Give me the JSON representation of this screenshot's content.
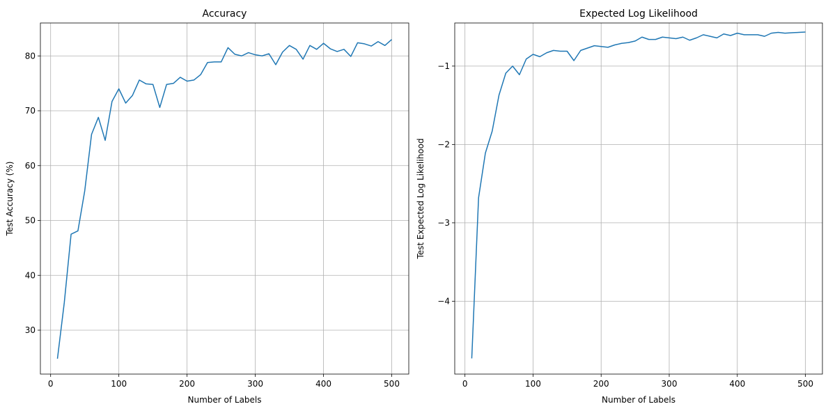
{
  "chart_data": [
    {
      "type": "line",
      "title": "Accuracy",
      "xlabel": "Number of Labels",
      "ylabel": "Test Accuracy (%)",
      "xlim": [
        -15,
        525
      ],
      "ylim": [
        22,
        86
      ],
      "xticks": [
        0,
        100,
        200,
        300,
        400,
        500
      ],
      "yticks": [
        30,
        40,
        50,
        60,
        70,
        80
      ],
      "ytick_labels": [
        "30",
        "40",
        "50",
        "60",
        "70",
        "80"
      ],
      "grid": true,
      "line_color": "#1f77b4",
      "x": [
        10,
        20,
        30,
        40,
        50,
        60,
        70,
        80,
        90,
        100,
        110,
        120,
        130,
        140,
        150,
        160,
        170,
        180,
        190,
        200,
        210,
        220,
        230,
        240,
        250,
        260,
        270,
        280,
        290,
        300,
        310,
        320,
        330,
        340,
        350,
        360,
        370,
        380,
        390,
        400,
        410,
        420,
        430,
        440,
        450,
        460,
        470,
        480,
        490,
        500
      ],
      "series": [
        {
          "values": [
            24.8,
            35.0,
            47.5,
            48.1,
            55.4,
            65.7,
            68.8,
            64.6,
            71.7,
            74.0,
            71.4,
            72.8,
            75.6,
            74.9,
            74.8,
            70.6,
            74.8,
            75.0,
            76.1,
            75.4,
            75.6,
            76.6,
            78.8,
            78.9,
            78.9,
            81.5,
            80.3,
            80.0,
            80.6,
            80.2,
            80.0,
            80.4,
            78.4,
            80.7,
            81.9,
            81.2,
            79.4,
            81.9,
            81.2,
            82.3,
            81.3,
            80.8,
            81.2,
            79.9,
            82.4,
            82.2,
            81.8,
            82.6,
            81.9,
            83.0
          ]
        }
      ]
    },
    {
      "type": "line",
      "title": "Expected Log Likelihood",
      "xlabel": "Number of Labels",
      "ylabel": "Test Expected Log Likelihood",
      "xlim": [
        -15,
        525
      ],
      "ylim": [
        -4.93,
        -0.45
      ],
      "xticks": [
        0,
        100,
        200,
        300,
        400,
        500
      ],
      "yticks": [
        -4,
        -3,
        -2,
        -1
      ],
      "ytick_labels": [
        "−4",
        "−3",
        "−2",
        "−1"
      ],
      "grid": true,
      "line_color": "#1f77b4",
      "x": [
        10,
        20,
        30,
        40,
        50,
        60,
        70,
        80,
        90,
        100,
        110,
        120,
        130,
        140,
        150,
        160,
        170,
        180,
        190,
        200,
        210,
        220,
        230,
        240,
        250,
        260,
        270,
        280,
        290,
        300,
        310,
        320,
        330,
        340,
        350,
        360,
        370,
        380,
        390,
        400,
        410,
        420,
        430,
        440,
        450,
        460,
        470,
        480,
        490,
        500
      ],
      "series": [
        {
          "values": [
            -4.73,
            -2.68,
            -2.11,
            -1.83,
            -1.37,
            -1.09,
            -1.0,
            -1.11,
            -0.91,
            -0.85,
            -0.88,
            -0.83,
            -0.8,
            -0.81,
            -0.81,
            -0.93,
            -0.8,
            -0.77,
            -0.74,
            -0.75,
            -0.76,
            -0.73,
            -0.71,
            -0.7,
            -0.68,
            -0.63,
            -0.66,
            -0.66,
            -0.63,
            -0.64,
            -0.65,
            -0.63,
            -0.67,
            -0.64,
            -0.6,
            -0.62,
            -0.64,
            -0.59,
            -0.61,
            -0.58,
            -0.6,
            -0.6,
            -0.6,
            -0.62,
            -0.58,
            -0.57,
            -0.58,
            -0.575,
            -0.57,
            -0.565
          ]
        }
      ]
    }
  ]
}
